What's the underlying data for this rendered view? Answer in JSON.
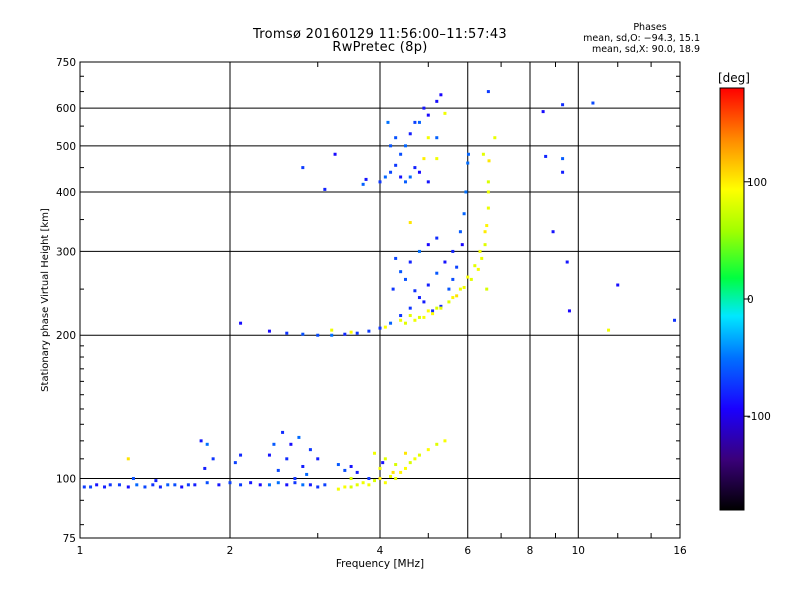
{
  "header": {
    "title": "Tromsø 20160129 11:56:00–11:57:43",
    "subtitle": "RwPretec (8p)",
    "stats_title": "Phases",
    "stats_o": "mean, sd,O: −94.3, 15.1",
    "stats_x": "mean, sd,X:  90.0, 18.9"
  },
  "chart_data": {
    "type": "scatter",
    "title": "Tromsø 20160129 11:56:00–11:57:43",
    "subtitle": "RwPretec (8p)",
    "xlabel": "Frequency [MHz]",
    "ylabel": "Stationary phase Virtual Height [km]",
    "x_scale": "log",
    "y_scale": "log",
    "xlim": [
      1,
      16
    ],
    "ylim": [
      75,
      750
    ],
    "x_ticks": [
      1,
      2,
      4,
      6,
      8,
      10,
      16
    ],
    "y_ticks": [
      75,
      100,
      200,
      300,
      400,
      500,
      600,
      750
    ],
    "grid": true,
    "colorbar": {
      "label": "[deg]",
      "range": [
        -180,
        180
      ],
      "ticks": [
        100,
        0,
        -100
      ]
    },
    "series": [
      {
        "name": "O",
        "phase": -94,
        "points": [
          [
            1.02,
            96
          ],
          [
            1.05,
            96
          ],
          [
            1.08,
            97
          ],
          [
            1.12,
            96
          ],
          [
            1.15,
            97
          ],
          [
            1.2,
            97
          ],
          [
            1.25,
            96
          ],
          [
            1.3,
            97
          ],
          [
            1.35,
            96
          ],
          [
            1.4,
            97
          ],
          [
            1.45,
            96
          ],
          [
            1.5,
            97
          ],
          [
            1.55,
            97
          ],
          [
            1.6,
            96
          ],
          [
            1.65,
            97
          ],
          [
            1.7,
            97
          ],
          [
            1.8,
            98
          ],
          [
            1.9,
            97
          ],
          [
            2.0,
            98
          ],
          [
            2.1,
            97
          ],
          [
            2.2,
            98
          ],
          [
            2.3,
            97
          ],
          [
            2.4,
            97
          ],
          [
            2.5,
            98
          ],
          [
            2.6,
            97
          ],
          [
            2.7,
            98
          ],
          [
            2.8,
            97
          ],
          [
            2.9,
            97
          ],
          [
            3.0,
            96
          ],
          [
            3.1,
            97
          ],
          [
            1.28,
            100
          ],
          [
            1.42,
            99
          ],
          [
            1.75,
            120
          ],
          [
            1.8,
            118
          ],
          [
            1.85,
            110
          ],
          [
            1.78,
            105
          ],
          [
            2.05,
            108
          ],
          [
            2.1,
            112
          ],
          [
            2.4,
            112
          ],
          [
            2.45,
            118
          ],
          [
            2.55,
            125
          ],
          [
            2.6,
            110
          ],
          [
            2.65,
            118
          ],
          [
            2.75,
            122
          ],
          [
            2.8,
            106
          ],
          [
            2.85,
            102
          ],
          [
            2.9,
            115
          ],
          [
            3.0,
            110
          ],
          [
            2.5,
            104
          ],
          [
            2.7,
            100
          ],
          [
            3.3,
            107
          ],
          [
            3.4,
            104
          ],
          [
            3.5,
            106
          ],
          [
            3.6,
            103
          ],
          [
            3.8,
            100
          ],
          [
            4.05,
            108
          ],
          [
            2.4,
            204
          ],
          [
            2.6,
            202
          ],
          [
            2.8,
            201
          ],
          [
            3.0,
            200
          ],
          [
            3.2,
            200
          ],
          [
            3.4,
            201
          ],
          [
            3.6,
            202
          ],
          [
            3.8,
            204
          ],
          [
            4.0,
            207
          ],
          [
            4.2,
            212
          ],
          [
            4.4,
            220
          ],
          [
            4.6,
            228
          ],
          [
            4.8,
            240
          ],
          [
            5.0,
            255
          ],
          [
            5.2,
            270
          ],
          [
            5.4,
            285
          ],
          [
            5.6,
            300
          ],
          [
            5.8,
            330
          ],
          [
            5.9,
            360
          ],
          [
            5.95,
            400
          ],
          [
            6.0,
            460
          ],
          [
            6.02,
            480
          ],
          [
            5.5,
            250
          ],
          [
            5.6,
            262
          ],
          [
            5.7,
            278
          ],
          [
            5.85,
            310
          ],
          [
            5.3,
            230
          ],
          [
            5.1,
            225
          ],
          [
            4.9,
            235
          ],
          [
            4.7,
            248
          ],
          [
            4.5,
            262
          ],
          [
            4.4,
            272
          ],
          [
            4.6,
            285
          ],
          [
            4.8,
            300
          ],
          [
            5.0,
            310
          ],
          [
            5.2,
            320
          ],
          [
            4.3,
            290
          ],
          [
            4.25,
            250
          ],
          [
            2.1,
            212
          ],
          [
            4.15,
            560
          ],
          [
            4.0,
            420
          ],
          [
            4.1,
            430
          ],
          [
            4.2,
            440
          ],
          [
            4.3,
            455
          ],
          [
            4.4,
            430
          ],
          [
            4.5,
            420
          ],
          [
            4.6,
            430
          ],
          [
            4.7,
            450
          ],
          [
            4.8,
            440
          ],
          [
            5.0,
            420
          ],
          [
            4.2,
            500
          ],
          [
            4.3,
            520
          ],
          [
            4.4,
            480
          ],
          [
            4.5,
            500
          ],
          [
            4.6,
            530
          ],
          [
            4.8,
            560
          ],
          [
            4.9,
            600
          ],
          [
            5.0,
            580
          ],
          [
            5.2,
            620
          ],
          [
            5.3,
            640
          ],
          [
            4.7,
            560
          ],
          [
            5.2,
            520
          ],
          [
            3.7,
            415
          ],
          [
            3.75,
            425
          ],
          [
            2.8,
            450
          ],
          [
            3.25,
            480
          ],
          [
            3.1,
            405
          ],
          [
            6.6,
            650
          ],
          [
            8.5,
            590
          ],
          [
            9.3,
            610
          ],
          [
            9.3,
            440
          ],
          [
            8.6,
            475
          ],
          [
            9.3,
            470
          ],
          [
            8.9,
            330
          ],
          [
            9.5,
            285
          ],
          [
            9.6,
            225
          ],
          [
            10.7,
            615
          ],
          [
            12.0,
            255
          ],
          [
            15.6,
            215
          ]
        ]
      },
      {
        "name": "X",
        "phase": 90,
        "points": [
          [
            3.3,
            95
          ],
          [
            3.4,
            96
          ],
          [
            3.5,
            96
          ],
          [
            3.6,
            97
          ],
          [
            3.7,
            98
          ],
          [
            3.8,
            97
          ],
          [
            3.9,
            99
          ],
          [
            4.0,
            100
          ],
          [
            4.1,
            98
          ],
          [
            4.2,
            101
          ],
          [
            4.3,
            100
          ],
          [
            4.4,
            103
          ],
          [
            4.5,
            105
          ],
          [
            4.6,
            108
          ],
          [
            4.7,
            110
          ],
          [
            4.8,
            112
          ],
          [
            5.0,
            115
          ],
          [
            5.2,
            118
          ],
          [
            5.4,
            120
          ],
          [
            4.0,
            105
          ],
          [
            4.1,
            110
          ],
          [
            4.3,
            107
          ],
          [
            4.5,
            113
          ],
          [
            1.25,
            110
          ],
          [
            3.5,
            100
          ],
          [
            3.9,
            113
          ],
          [
            4.25,
            103
          ],
          [
            4.5,
            212
          ],
          [
            4.7,
            215
          ],
          [
            4.9,
            218
          ],
          [
            5.1,
            222
          ],
          [
            5.3,
            228
          ],
          [
            5.5,
            235
          ],
          [
            5.7,
            242
          ],
          [
            5.9,
            252
          ],
          [
            6.1,
            262
          ],
          [
            6.3,
            275
          ],
          [
            6.4,
            290
          ],
          [
            6.5,
            310
          ],
          [
            6.55,
            340
          ],
          [
            6.6,
            370
          ],
          [
            6.6,
            400
          ],
          [
            6.6,
            420
          ],
          [
            6.62,
            465
          ],
          [
            6.45,
            480
          ],
          [
            6.5,
            330
          ],
          [
            6.35,
            300
          ],
          [
            6.2,
            280
          ],
          [
            6.0,
            265
          ],
          [
            5.8,
            250
          ],
          [
            5.6,
            240
          ],
          [
            5.0,
            225
          ],
          [
            5.2,
            228
          ],
          [
            4.6,
            220
          ],
          [
            4.4,
            215
          ],
          [
            4.8,
            218
          ],
          [
            6.55,
            250
          ],
          [
            3.2,
            205
          ],
          [
            3.5,
            203
          ],
          [
            4.1,
            208
          ],
          [
            4.6,
            345
          ],
          [
            6.8,
            520
          ],
          [
            5.2,
            470
          ],
          [
            5.0,
            520
          ],
          [
            5.4,
            585
          ],
          [
            4.9,
            470
          ],
          [
            11.5,
            205
          ]
        ]
      }
    ]
  }
}
